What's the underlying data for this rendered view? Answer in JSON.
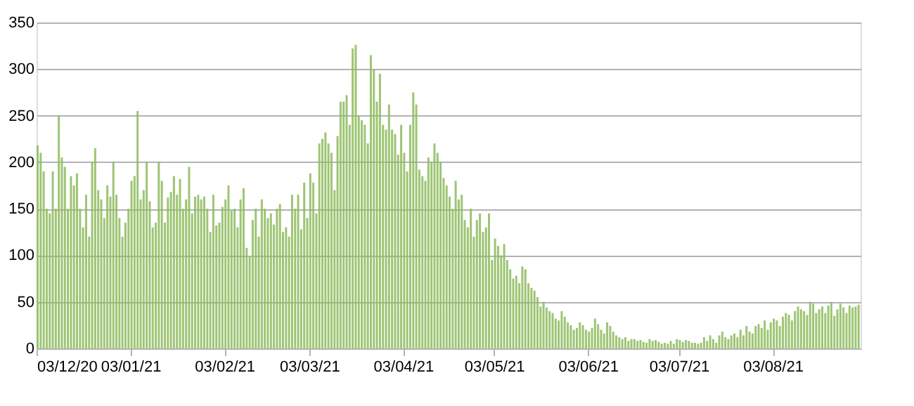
{
  "chart_data": {
    "type": "bar",
    "color": "#8dbb5c",
    "x": [
      "2020-12-03",
      "2020-12-04",
      "2020-12-05",
      "2020-12-06",
      "2020-12-07",
      "2020-12-08",
      "2020-12-09",
      "2020-12-10",
      "2020-12-11",
      "2020-12-12",
      "2020-12-13",
      "2020-12-14",
      "2020-12-15",
      "2020-12-16",
      "2020-12-17",
      "2020-12-18",
      "2020-12-19",
      "2020-12-20",
      "2020-12-21",
      "2020-12-22",
      "2020-12-23",
      "2020-12-24",
      "2020-12-25",
      "2020-12-26",
      "2020-12-27",
      "2020-12-28",
      "2020-12-29",
      "2020-12-30",
      "2020-12-31",
      "2021-01-01",
      "2021-01-02",
      "2021-01-03",
      "2021-01-04",
      "2021-01-05",
      "2021-01-06",
      "2021-01-07",
      "2021-01-08",
      "2021-01-09",
      "2021-01-10",
      "2021-01-11",
      "2021-01-12",
      "2021-01-13",
      "2021-01-14",
      "2021-01-15",
      "2021-01-16",
      "2021-01-17",
      "2021-01-18",
      "2021-01-19",
      "2021-01-20",
      "2021-01-21",
      "2021-01-22",
      "2021-01-23",
      "2021-01-24",
      "2021-01-25",
      "2021-01-26",
      "2021-01-27",
      "2021-01-28",
      "2021-01-29",
      "2021-01-30",
      "2021-01-31",
      "2021-02-01",
      "2021-02-02",
      "2021-02-03",
      "2021-02-04",
      "2021-02-05",
      "2021-02-06",
      "2021-02-07",
      "2021-02-08",
      "2021-02-09",
      "2021-02-10",
      "2021-02-11",
      "2021-02-12",
      "2021-02-13",
      "2021-02-14",
      "2021-02-15",
      "2021-02-16",
      "2021-02-17",
      "2021-02-18",
      "2021-02-19",
      "2021-02-20",
      "2021-02-21",
      "2021-02-22",
      "2021-02-23",
      "2021-02-24",
      "2021-02-25",
      "2021-02-26",
      "2021-02-27",
      "2021-02-28",
      "2021-03-01",
      "2021-03-02",
      "2021-03-03",
      "2021-03-04",
      "2021-03-05",
      "2021-03-06",
      "2021-03-07",
      "2021-03-08",
      "2021-03-09",
      "2021-03-10",
      "2021-03-11",
      "2021-03-12",
      "2021-03-13",
      "2021-03-14",
      "2021-03-15",
      "2021-03-16",
      "2021-03-17",
      "2021-03-18",
      "2021-03-19",
      "2021-03-20",
      "2021-03-21",
      "2021-03-22",
      "2021-03-23",
      "2021-03-24",
      "2021-03-25",
      "2021-03-26",
      "2021-03-27",
      "2021-03-28",
      "2021-03-29",
      "2021-03-30",
      "2021-03-31",
      "2021-04-01",
      "2021-04-02",
      "2021-04-03",
      "2021-04-04",
      "2021-04-05",
      "2021-04-06",
      "2021-04-07",
      "2021-04-08",
      "2021-04-09",
      "2021-04-10",
      "2021-04-11",
      "2021-04-12",
      "2021-04-13",
      "2021-04-14",
      "2021-04-15",
      "2021-04-16",
      "2021-04-17",
      "2021-04-18",
      "2021-04-19",
      "2021-04-20",
      "2021-04-21",
      "2021-04-22",
      "2021-04-23",
      "2021-04-24",
      "2021-04-25",
      "2021-04-26",
      "2021-04-27",
      "2021-04-28",
      "2021-04-29",
      "2021-04-30",
      "2021-05-01",
      "2021-05-02",
      "2021-05-03",
      "2021-05-04",
      "2021-05-05",
      "2021-05-06",
      "2021-05-07",
      "2021-05-08",
      "2021-05-09",
      "2021-05-10",
      "2021-05-11",
      "2021-05-12",
      "2021-05-13",
      "2021-05-14",
      "2021-05-15",
      "2021-05-16",
      "2021-05-17",
      "2021-05-18",
      "2021-05-19",
      "2021-05-20",
      "2021-05-21",
      "2021-05-22",
      "2021-05-23",
      "2021-05-24",
      "2021-05-25",
      "2021-05-26",
      "2021-05-27",
      "2021-05-28",
      "2021-05-29",
      "2021-05-30",
      "2021-05-31",
      "2021-06-01",
      "2021-06-02",
      "2021-06-03",
      "2021-06-04",
      "2021-06-05",
      "2021-06-06",
      "2021-06-07",
      "2021-06-08",
      "2021-06-09",
      "2021-06-10",
      "2021-06-11",
      "2021-06-12",
      "2021-06-13",
      "2021-06-14",
      "2021-06-15",
      "2021-06-16",
      "2021-06-17",
      "2021-06-18",
      "2021-06-19",
      "2021-06-20",
      "2021-06-21",
      "2021-06-22",
      "2021-06-23",
      "2021-06-24",
      "2021-06-25",
      "2021-06-26",
      "2021-06-27",
      "2021-06-28",
      "2021-06-29",
      "2021-06-30",
      "2021-07-01",
      "2021-07-02",
      "2021-07-03",
      "2021-07-04",
      "2021-07-05",
      "2021-07-06",
      "2021-07-07",
      "2021-07-08",
      "2021-07-09",
      "2021-07-10",
      "2021-07-11",
      "2021-07-12",
      "2021-07-13",
      "2021-07-14",
      "2021-07-15",
      "2021-07-16",
      "2021-07-17",
      "2021-07-18",
      "2021-07-19",
      "2021-07-20",
      "2021-07-21",
      "2021-07-22",
      "2021-07-23",
      "2021-07-24",
      "2021-07-25",
      "2021-07-26",
      "2021-07-27",
      "2021-07-28",
      "2021-07-29",
      "2021-07-30",
      "2021-07-31",
      "2021-08-01",
      "2021-08-02",
      "2021-08-03",
      "2021-08-04",
      "2021-08-05",
      "2021-08-06",
      "2021-08-07",
      "2021-08-08",
      "2021-08-09",
      "2021-08-10",
      "2021-08-11",
      "2021-08-12",
      "2021-08-13",
      "2021-08-14",
      "2021-08-15",
      "2021-08-16",
      "2021-08-17",
      "2021-08-18",
      "2021-08-19",
      "2021-08-20",
      "2021-08-21",
      "2021-08-22",
      "2021-08-23",
      "2021-08-24",
      "2021-08-25",
      "2021-08-26",
      "2021-08-27",
      "2021-08-28",
      "2021-08-29",
      "2021-08-30",
      "2021-08-31"
    ],
    "values": [
      218,
      210,
      190,
      150,
      145,
      190,
      150,
      250,
      205,
      195,
      150,
      185,
      175,
      188,
      150,
      130,
      165,
      120,
      200,
      215,
      170,
      160,
      140,
      175,
      163,
      200,
      165,
      140,
      120,
      135,
      150,
      180,
      185,
      255,
      160,
      170,
      200,
      158,
      130,
      135,
      200,
      180,
      135,
      162,
      168,
      185,
      165,
      182,
      150,
      160,
      195,
      145,
      163,
      165,
      160,
      163,
      150,
      125,
      165,
      132,
      135,
      152,
      160,
      175,
      148,
      150,
      130,
      160,
      172,
      108,
      98,
      138,
      150,
      120,
      160,
      150,
      140,
      145,
      133,
      150,
      155,
      125,
      130,
      120,
      165,
      150,
      165,
      128,
      178,
      140,
      188,
      178,
      145,
      220,
      225,
      232,
      220,
      210,
      170,
      228,
      265,
      265,
      272,
      240,
      322,
      326,
      250,
      245,
      240,
      220,
      315,
      300,
      265,
      295,
      240,
      235,
      262,
      235,
      230,
      208,
      240,
      210,
      190,
      240,
      275,
      262,
      192,
      185,
      180,
      205,
      200,
      220,
      210,
      200,
      183,
      175,
      163,
      150,
      180,
      160,
      165,
      138,
      130,
      150,
      120,
      138,
      145,
      125,
      130,
      145,
      95,
      118,
      110,
      100,
      112,
      95,
      85,
      75,
      78,
      70,
      88,
      85,
      70,
      65,
      62,
      55,
      45,
      50,
      44,
      40,
      38,
      32,
      30,
      40,
      34,
      28,
      25,
      20,
      22,
      28,
      25,
      20,
      18,
      22,
      32,
      26,
      20,
      16,
      28,
      24,
      18,
      14,
      12,
      10,
      12,
      8,
      10,
      10,
      8,
      9,
      7,
      6,
      10,
      8,
      9,
      7,
      5,
      6,
      5,
      8,
      5,
      10,
      9,
      7,
      9,
      8,
      6,
      6,
      5,
      6,
      12,
      8,
      14,
      10,
      6,
      14,
      18,
      12,
      10,
      14,
      16,
      12,
      20,
      14,
      24,
      18,
      16,
      24,
      26,
      22,
      30,
      20,
      28,
      32,
      30,
      24,
      34,
      38,
      36,
      30,
      40,
      45,
      42,
      40,
      36,
      50,
      48,
      38,
      42,
      45,
      38,
      46,
      50,
      35,
      42,
      48,
      44,
      38,
      46,
      44,
      45,
      47
    ],
    "xlim": [
      "2020-12-03",
      "2021-09-01"
    ],
    "xticks": [
      {
        "value": "2020-12-03",
        "label": "03/12/20"
      },
      {
        "value": "2021-01-03",
        "label": "03/01/21"
      },
      {
        "value": "2021-02-03",
        "label": "03/02/21"
      },
      {
        "value": "2021-03-03",
        "label": "03/03/21"
      },
      {
        "value": "2021-04-03",
        "label": "03/04/21"
      },
      {
        "value": "2021-05-03",
        "label": "03/05/21"
      },
      {
        "value": "2021-06-03",
        "label": "03/06/21"
      },
      {
        "value": "2021-07-03",
        "label": "03/07/21"
      },
      {
        "value": "2021-08-03",
        "label": "03/08/21"
      }
    ],
    "ylim": [
      0,
      350
    ],
    "yticks": [
      0,
      50,
      100,
      150,
      200,
      250,
      300,
      350
    ],
    "grid": "y"
  }
}
